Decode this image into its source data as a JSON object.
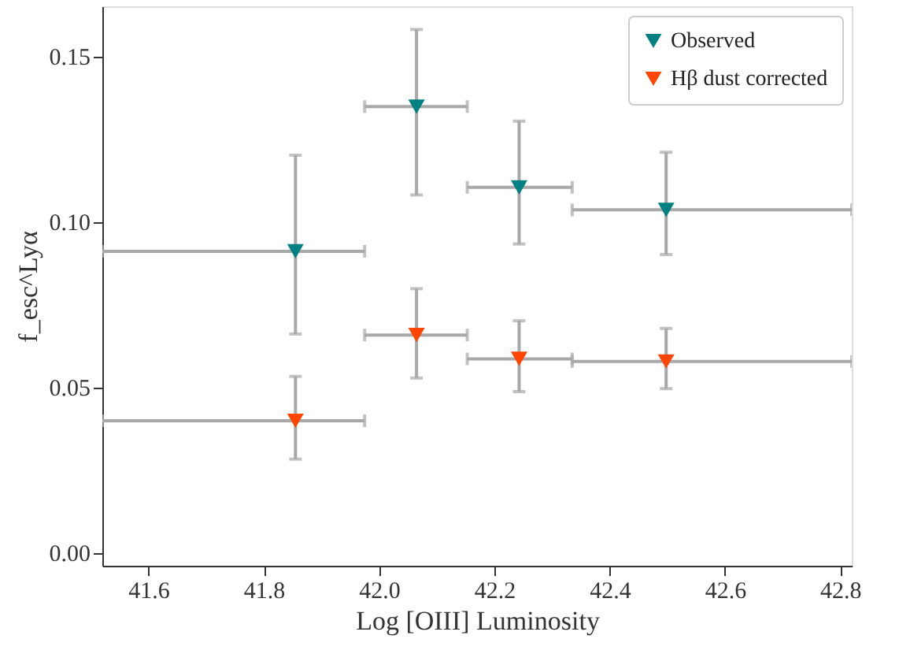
{
  "chart_data": {
    "type": "scatter",
    "xlabel": "Log [OIII] Luminosity",
    "ylabel": "f_esc^Lyα",
    "x": [
      41.855,
      42.065,
      42.243,
      42.498
    ],
    "series": [
      {
        "name": "Observed",
        "color": "#008080",
        "values": [
          0.091,
          0.1347,
          0.1103,
          0.1035
        ],
        "errors": [
          [
            0.066,
            0.12
          ],
          [
            0.108,
            0.158
          ],
          [
            0.0932,
            0.1303
          ],
          [
            0.09,
            0.1209
          ]
        ],
        "xerrors": [
          [
            41.52,
            41.975
          ],
          [
            41.975,
            42.153
          ],
          [
            42.153,
            42.335
          ],
          [
            42.335,
            42.82
          ]
        ]
      },
      {
        "name": "Hβ dust corrected",
        "color": "#ff4500",
        "values": [
          0.0398,
          0.0657,
          0.0585,
          0.0577
        ],
        "errors": [
          [
            0.0282,
            0.0532
          ],
          [
            0.0527,
            0.0797
          ],
          [
            0.0486,
            0.07
          ],
          [
            0.0495,
            0.0677
          ]
        ],
        "xerrors": [
          [
            41.52,
            41.975
          ],
          [
            41.975,
            42.153
          ],
          [
            42.153,
            42.335
          ],
          [
            42.335,
            42.82
          ]
        ]
      }
    ],
    "xlim": [
      41.52,
      42.82
    ],
    "ylim": [
      -0.004,
      0.165
    ],
    "xticks": [
      41.6,
      41.8,
      {
        "value": 42,
        "label": "42.0"
      },
      42.2,
      42.4,
      42.6,
      42.8
    ],
    "yticks": [
      {
        "value": 0,
        "label": "0.00"
      },
      0.05,
      {
        "value": 0.1,
        "label": "0.10"
      },
      0.15
    ],
    "marker": "triangle",
    "legend": "top right",
    "grid": false
  }
}
